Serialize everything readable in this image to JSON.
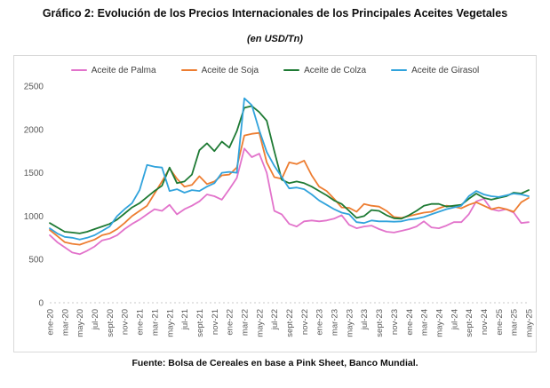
{
  "title": "Gráfico 2: Evolución de los Precios Internacionales de los Principales Aceites Vegetales",
  "subtitle": "(en USD/Tn)",
  "source": "Fuente: Bolsa de Cereales en base a Pink Sheet, Banco Mundial.",
  "colors": {
    "axis_text": "#595959",
    "border": "#d9d9d9",
    "zero_line": "#c8c8c8"
  },
  "chart_data": {
    "type": "line",
    "title": "Gráfico 2: Evolución de los Precios Internacionales de los Principales Aceites Vegetales",
    "subtitle": "(en USD/Tn)",
    "xlabel": "",
    "ylabel": "",
    "ylim": [
      0,
      2500
    ],
    "y_ticks": [
      0,
      500,
      1000,
      1500,
      2000,
      2500
    ],
    "grid": false,
    "legend_position": "top",
    "x_tick_step": 2,
    "x": [
      "ene-20",
      "feb-20",
      "mar-20",
      "abr-20",
      "may-20",
      "jun-20",
      "jul-20",
      "ago-20",
      "sept-20",
      "oct-20",
      "nov-20",
      "dic-20",
      "ene-21",
      "feb-21",
      "mar-21",
      "abr-21",
      "may-21",
      "jun-21",
      "jul-21",
      "ago-21",
      "sept-21",
      "oct-21",
      "nov-21",
      "dic-21",
      "ene-22",
      "feb-22",
      "mar-22",
      "abr-22",
      "may-22",
      "jun-22",
      "jul-22",
      "ago-22",
      "sept-22",
      "oct-22",
      "nov-22",
      "dic-22",
      "ene-23",
      "feb-23",
      "mar-23",
      "abr-23",
      "may-23",
      "jun-23",
      "jul-23",
      "ago-23",
      "sept-23",
      "oct-23",
      "nov-23",
      "dic-23",
      "ene-24",
      "feb-24",
      "mar-24",
      "abr-24",
      "may-24",
      "jun-24",
      "jul-24",
      "ago-24",
      "sept-24",
      "oct-24",
      "nov-24",
      "dic-24",
      "ene-25",
      "feb-25",
      "mar-25",
      "abr-25",
      "may-25"
    ],
    "series": [
      {
        "name": "Aceite de Palma",
        "color": "#e273cb",
        "values": [
          780,
          700,
          640,
          580,
          560,
          600,
          650,
          720,
          740,
          780,
          850,
          910,
          960,
          1020,
          1080,
          1060,
          1130,
          1020,
          1080,
          1120,
          1170,
          1250,
          1230,
          1190,
          1310,
          1440,
          1780,
          1680,
          1720,
          1500,
          1060,
          1020,
          910,
          880,
          940,
          950,
          940,
          950,
          970,
          1010,
          900,
          860,
          880,
          890,
          850,
          820,
          810,
          830,
          850,
          880,
          940,
          870,
          860,
          890,
          930,
          930,
          1020,
          1170,
          1200,
          1080,
          1060,
          1080,
          1040,
          920,
          930
        ]
      },
      {
        "name": "Aceite de Soja",
        "color": "#ed7d31",
        "values": [
          840,
          770,
          700,
          680,
          670,
          700,
          730,
          780,
          800,
          850,
          920,
          1000,
          1060,
          1120,
          1260,
          1400,
          1550,
          1430,
          1340,
          1360,
          1460,
          1370,
          1400,
          1470,
          1480,
          1560,
          1930,
          1950,
          1960,
          1620,
          1450,
          1430,
          1620,
          1600,
          1640,
          1470,
          1340,
          1290,
          1200,
          1100,
          1095,
          1050,
          1140,
          1120,
          1110,
          1060,
          990,
          980,
          1000,
          1020,
          1040,
          1050,
          1090,
          1120,
          1110,
          1090,
          1130,
          1160,
          1120,
          1080,
          1100,
          1080,
          1050,
          1160,
          1210
        ]
      },
      {
        "name": "Aceite de Colza",
        "color": "#1e7a34",
        "values": [
          920,
          870,
          820,
          810,
          800,
          820,
          850,
          880,
          910,
          960,
          1030,
          1100,
          1150,
          1220,
          1290,
          1350,
          1560,
          1380,
          1400,
          1480,
          1760,
          1840,
          1750,
          1860,
          1790,
          1980,
          2250,
          2270,
          2200,
          2100,
          1750,
          1420,
          1380,
          1400,
          1380,
          1340,
          1290,
          1240,
          1180,
          1140,
          1060,
          980,
          1000,
          1070,
          1060,
          1010,
          975,
          970,
          1010,
          1060,
          1120,
          1140,
          1140,
          1110,
          1120,
          1130,
          1200,
          1260,
          1210,
          1190,
          1210,
          1230,
          1270,
          1260,
          1300
        ]
      },
      {
        "name": "Aceite de Girasol",
        "color": "#31a3dc",
        "values": [
          860,
          800,
          760,
          750,
          730,
          750,
          780,
          830,
          880,
          1000,
          1080,
          1150,
          1300,
          1590,
          1570,
          1560,
          1290,
          1310,
          1270,
          1300,
          1290,
          1340,
          1380,
          1500,
          1510,
          1500,
          2360,
          2280,
          1990,
          1740,
          1580,
          1450,
          1320,
          1330,
          1310,
          1250,
          1180,
          1130,
          1080,
          1040,
          1020,
          930,
          920,
          950,
          940,
          940,
          935,
          940,
          960,
          970,
          990,
          1020,
          1050,
          1080,
          1100,
          1120,
          1230,
          1290,
          1250,
          1230,
          1220,
          1240,
          1260,
          1250,
          1230
        ]
      }
    ]
  }
}
